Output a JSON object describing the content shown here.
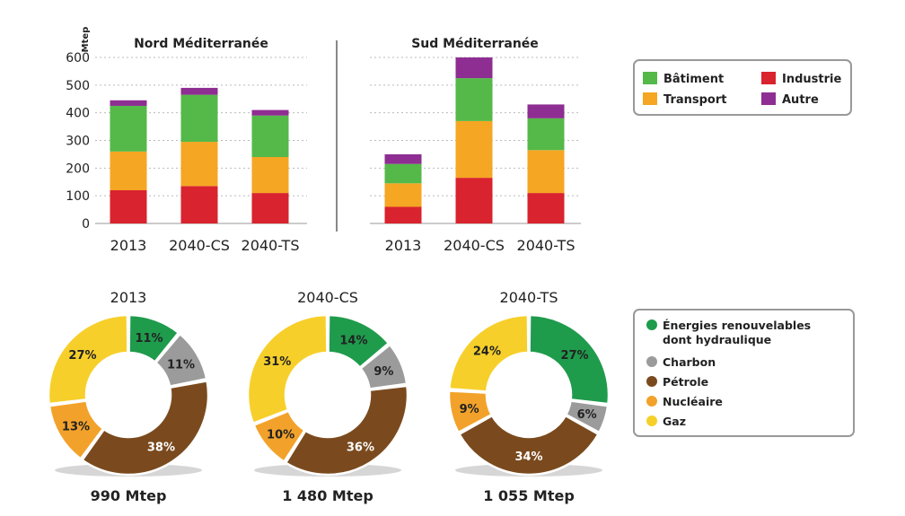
{
  "bar_chart": {
    "unit_label": "Mtep",
    "y_ticks": [
      "0",
      "100",
      "200",
      "300",
      "400",
      "500",
      "600"
    ],
    "legend": {
      "batiment": "Bâtiment",
      "industrie": "Industrie",
      "transport": "Transport",
      "autre": "Autre"
    }
  },
  "donut_chart": {
    "legend": {
      "renouvelables_1": "Énergies renouvelables",
      "renouvelables_2": "dont hydraulique",
      "charbon": "Charbon",
      "petrole": "Pétrole",
      "nucleaire": "Nucléaire",
      "gaz": "Gaz"
    }
  },
  "colors": {
    "industrie": "#d9232e",
    "transport": "#f5a623",
    "batiment": "#54b948",
    "autre": "#8e2d92",
    "renouvelables": "#1f9b4c",
    "charbon": "#9b9b9b",
    "petrole": "#7a4a1e",
    "nucleaire": "#f2a22a",
    "gaz": "#f7cf2a"
  },
  "chart_data": [
    {
      "type": "bar",
      "stacked": true,
      "title": "Nord Méditerranée",
      "ylabel": "Mtep",
      "ylim": [
        0,
        600
      ],
      "categories": [
        "2013",
        "2040-CS",
        "2040-TS"
      ],
      "series": [
        {
          "name": "Industrie",
          "values": [
            120,
            135,
            110
          ]
        },
        {
          "name": "Transport",
          "values": [
            140,
            160,
            130
          ]
        },
        {
          "name": "Bâtiment",
          "values": [
            165,
            170,
            150
          ]
        },
        {
          "name": "Autre",
          "values": [
            20,
            25,
            20
          ]
        }
      ]
    },
    {
      "type": "bar",
      "stacked": true,
      "title": "Sud Méditerranée",
      "ylabel": "Mtep",
      "ylim": [
        0,
        600
      ],
      "categories": [
        "2013",
        "2040-CS",
        "2040-TS"
      ],
      "series": [
        {
          "name": "Industrie",
          "values": [
            60,
            165,
            110
          ]
        },
        {
          "name": "Transport",
          "values": [
            85,
            205,
            155
          ]
        },
        {
          "name": "Bâtiment",
          "values": [
            70,
            155,
            115
          ]
        },
        {
          "name": "Autre",
          "values": [
            35,
            75,
            50
          ]
        }
      ]
    },
    {
      "type": "pie",
      "title": "2013",
      "total": "990 Mtep",
      "slices": [
        {
          "name": "Énergies renouvelables dont hydraulique",
          "value": 11,
          "label": "11%"
        },
        {
          "name": "Charbon",
          "value": 11,
          "label": "11%"
        },
        {
          "name": "Pétrole",
          "value": 38,
          "label": "38%"
        },
        {
          "name": "Nucléaire",
          "value": 13,
          "label": "13%"
        },
        {
          "name": "Gaz",
          "value": 27,
          "label": "27%"
        }
      ]
    },
    {
      "type": "pie",
      "title": "2040-CS",
      "total": "1 480 Mtep",
      "slices": [
        {
          "name": "Énergies renouvelables dont hydraulique",
          "value": 14,
          "label": "14%"
        },
        {
          "name": "Charbon",
          "value": 9,
          "label": "9%"
        },
        {
          "name": "Pétrole",
          "value": 36,
          "label": "36%"
        },
        {
          "name": "Nucléaire",
          "value": 10,
          "label": "10%"
        },
        {
          "name": "Gaz",
          "value": 31,
          "label": "31%"
        }
      ]
    },
    {
      "type": "pie",
      "title": "2040-TS",
      "total": "1 055 Mtep",
      "slices": [
        {
          "name": "Énergies renouvelables dont hydraulique",
          "value": 27,
          "label": "27%"
        },
        {
          "name": "Charbon",
          "value": 6,
          "label": "6%"
        },
        {
          "name": "Pétrole",
          "value": 34,
          "label": "34%"
        },
        {
          "name": "Nucléaire",
          "value": 9,
          "label": "9%"
        },
        {
          "name": "Gaz",
          "value": 24,
          "label": "24%"
        }
      ]
    }
  ]
}
